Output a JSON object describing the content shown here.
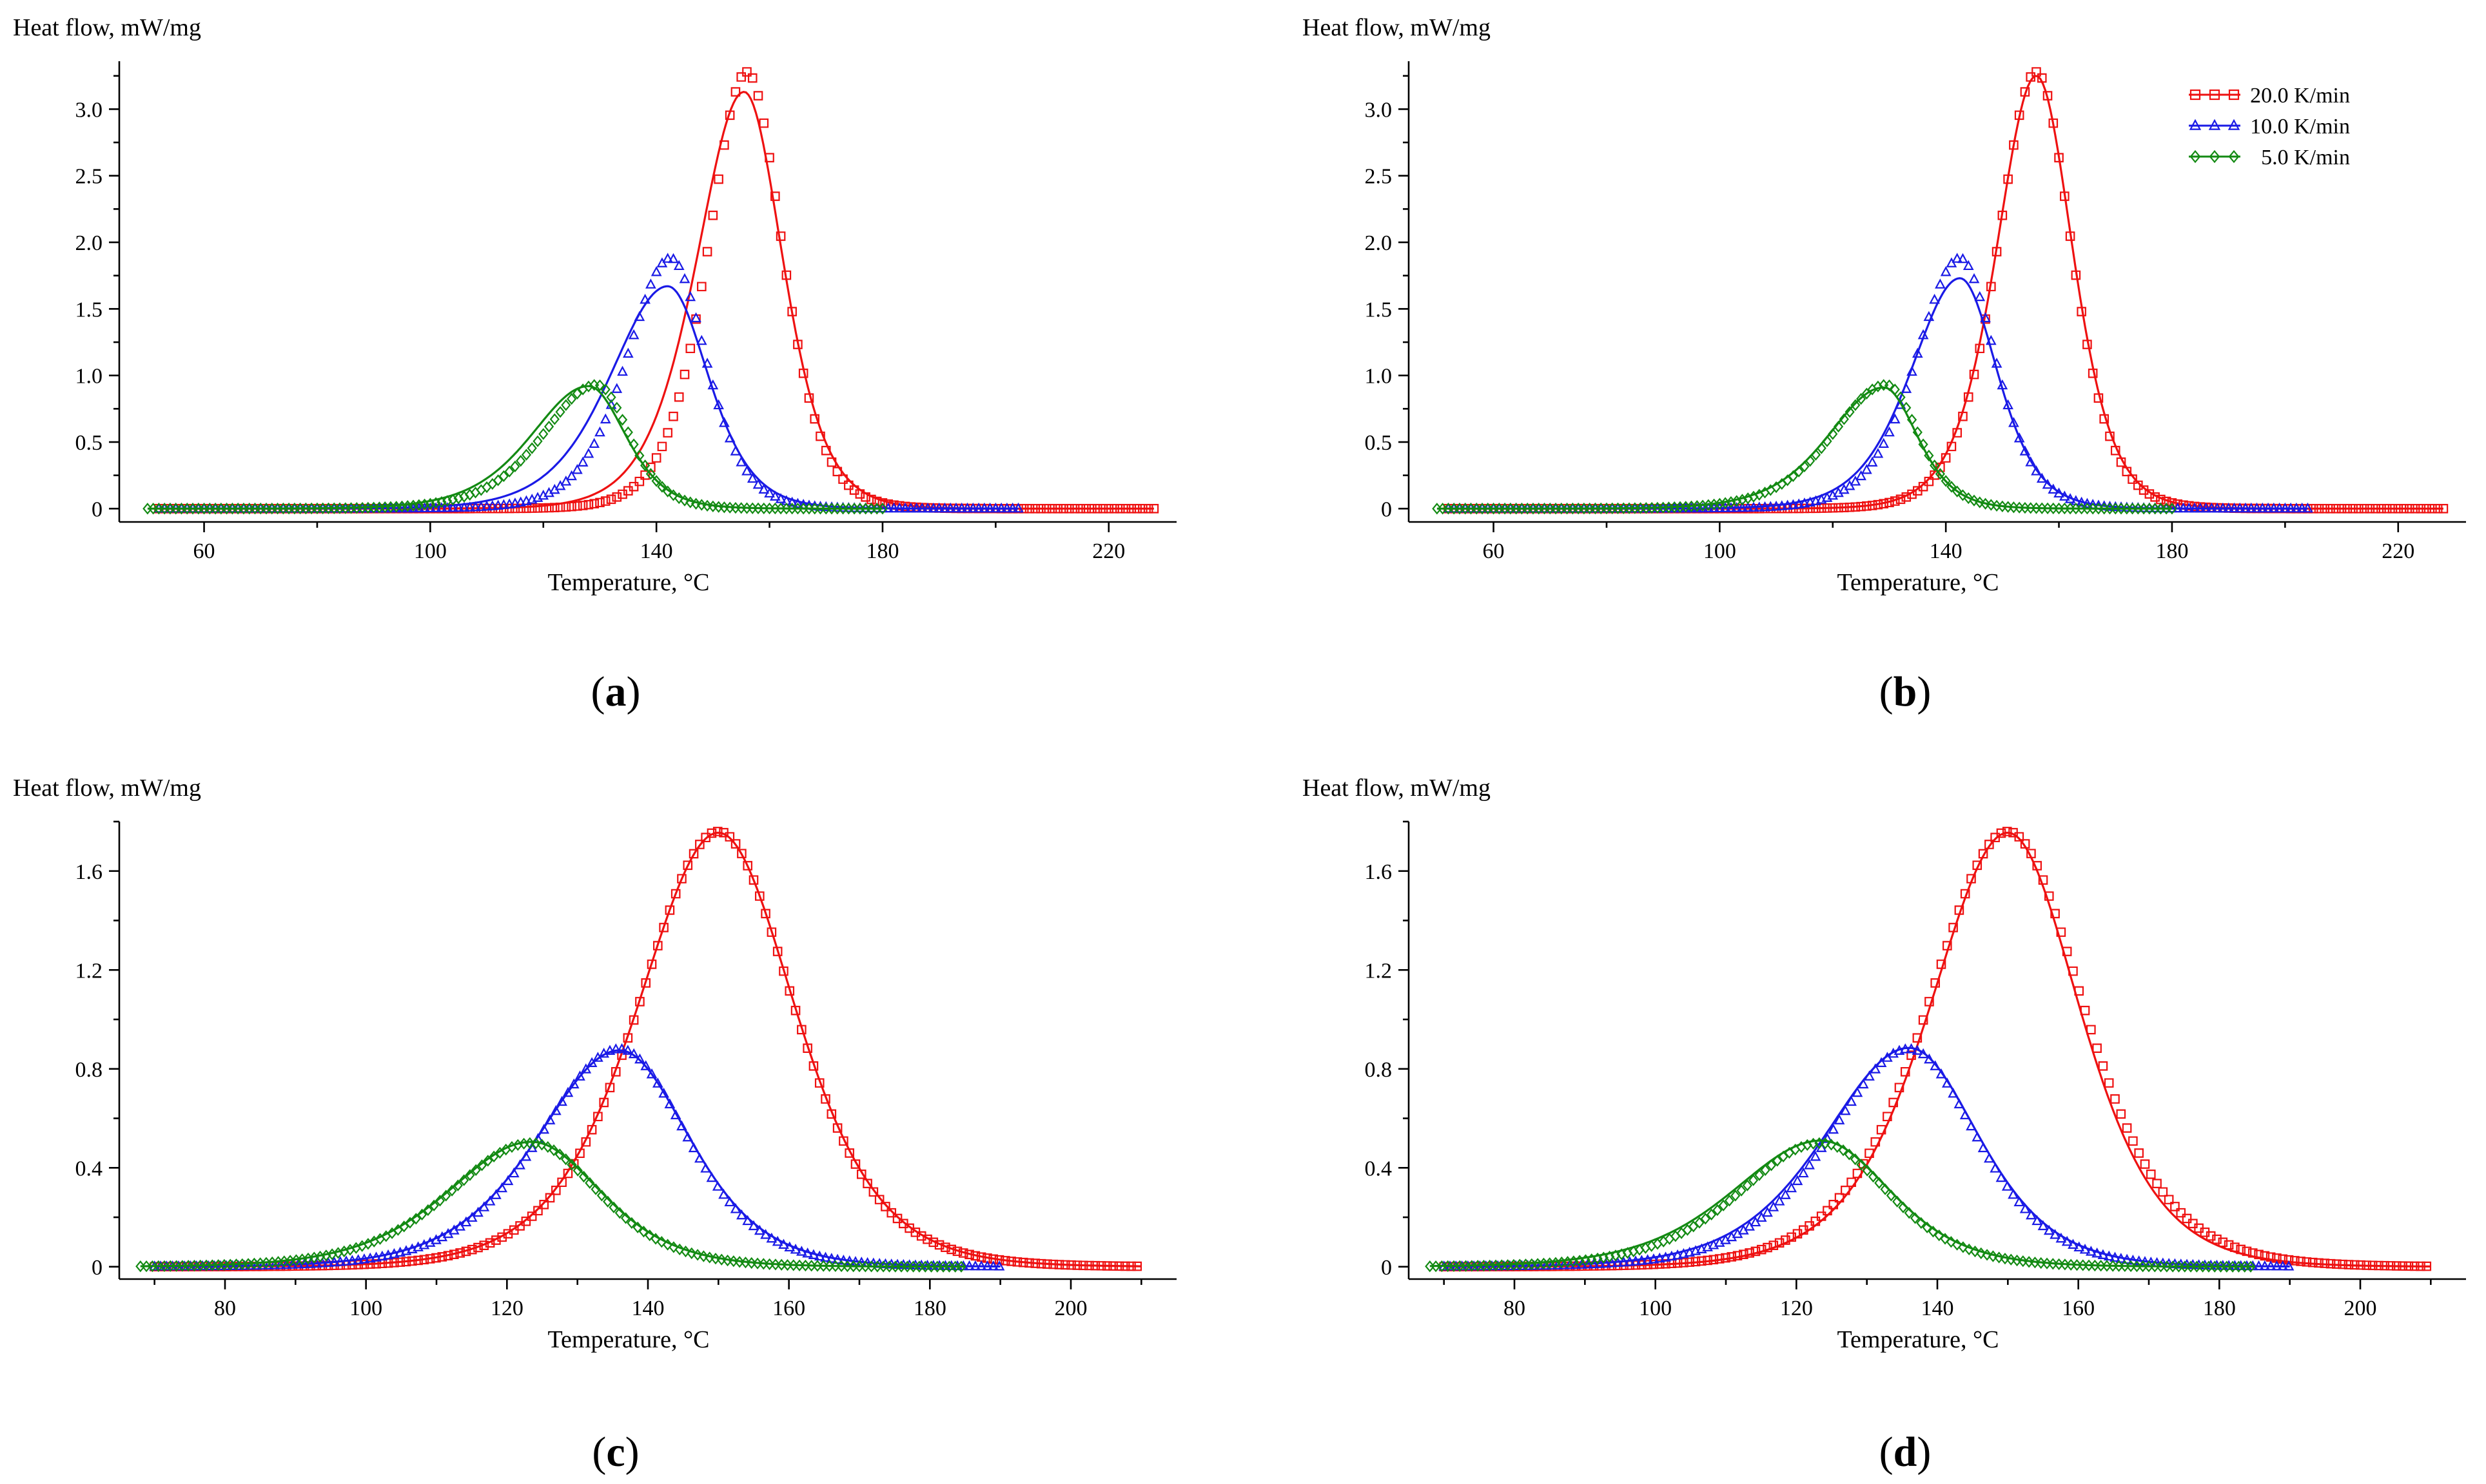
{
  "series_styles": [
    {
      "name": "20.0 K/min",
      "color": "#ee1111",
      "marker": "square"
    },
    {
      "name": "10.0 K/min",
      "color": "#1a1ae6",
      "marker": "triangle"
    },
    {
      "name": "5.0 K/min",
      "color": "#138a13",
      "marker": "diamond"
    }
  ],
  "chart_data": [
    {
      "panel": "a",
      "type": "line",
      "ylabel": "Heat flow, mW/mg",
      "xlabel": "Temperature, °C",
      "xlim": [
        45,
        232
      ],
      "ylim": [
        -0.1,
        3.36
      ],
      "xticks": [
        60,
        100,
        140,
        180,
        220
      ],
      "xtick_labels": [
        "60",
        "100",
        "140",
        "180",
        "220"
      ],
      "yticks": [
        0,
        0.5,
        1,
        1.5,
        2,
        2.5,
        3
      ],
      "ytick_labels": [
        "0",
        "0.5",
        "1.0",
        "1.5",
        "2.0",
        "2.5",
        "3.0"
      ],
      "legend": false,
      "series": [
        {
          "name": "20.0 K/min",
          "x_range": [
            52,
            228
          ],
          "exp_peak": {
            "x": 156,
            "y": 3.28,
            "left_width": 11.5,
            "right_width": 10.5
          },
          "fit_peak": {
            "x": 155.5,
            "y": 3.13,
            "left_width": 14,
            "right_width": 11.5
          }
        },
        {
          "name": "10.0 K/min",
          "x_range": [
            52,
            204
          ],
          "exp_peak": {
            "x": 142.5,
            "y": 1.88,
            "left_width": 13,
            "right_width": 10.5
          },
          "fit_peak": {
            "x": 142,
            "y": 1.67,
            "left_width": 17,
            "right_width": 12
          }
        },
        {
          "name": "5.0 K/min",
          "x_range": [
            50,
            180
          ],
          "exp_peak": {
            "x": 129.5,
            "y": 0.93,
            "left_width": 16,
            "right_width": 9.5
          },
          "fit_peak": {
            "x": 128,
            "y": 0.92,
            "left_width": 17,
            "right_width": 11
          }
        }
      ]
    },
    {
      "panel": "b",
      "type": "line",
      "ylabel": "Heat flow, mW/mg",
      "xlabel": "Temperature, °C",
      "xlim": [
        45,
        232
      ],
      "ylim": [
        -0.1,
        3.36
      ],
      "xticks": [
        60,
        100,
        140,
        180,
        220
      ],
      "xtick_labels": [
        "60",
        "100",
        "140",
        "180",
        "220"
      ],
      "yticks": [
        0,
        0.5,
        1,
        1.5,
        2,
        2.5,
        3
      ],
      "ytick_labels": [
        "0",
        "0.5",
        "1.0",
        "1.5",
        "2.0",
        "2.5",
        "3.0"
      ],
      "legend": true,
      "legend_position": "top-right",
      "series": [
        {
          "name": "20.0 K/min",
          "x_range": [
            52,
            228
          ],
          "exp_peak": {
            "x": 156,
            "y": 3.28,
            "left_width": 11.5,
            "right_width": 10.5
          },
          "fit_peak": {
            "x": 156,
            "y": 3.25,
            "left_width": 11.8,
            "right_width": 10.8
          }
        },
        {
          "name": "10.0 K/min",
          "x_range": [
            52,
            204
          ],
          "exp_peak": {
            "x": 142.5,
            "y": 1.88,
            "left_width": 13,
            "right_width": 10.5
          },
          "fit_peak": {
            "x": 142.5,
            "y": 1.73,
            "left_width": 14.5,
            "right_width": 11
          }
        },
        {
          "name": "5.0 K/min",
          "x_range": [
            50,
            180
          ],
          "exp_peak": {
            "x": 129.5,
            "y": 0.93,
            "left_width": 16,
            "right_width": 9.5
          },
          "fit_peak": {
            "x": 129,
            "y": 0.91,
            "left_width": 16.5,
            "right_width": 10
          }
        }
      ]
    },
    {
      "panel": "c",
      "type": "line",
      "ylabel": "Heat flow, mW/mg",
      "xlabel": "Temperature, °C",
      "xlim": [
        65,
        215
      ],
      "ylim": [
        -0.05,
        1.8
      ],
      "xticks": [
        80,
        100,
        120,
        140,
        160,
        180,
        200
      ],
      "xtick_labels": [
        "80",
        "100",
        "120",
        "140",
        "160",
        "180",
        "200"
      ],
      "yticks": [
        0,
        0.4,
        0.8,
        1.2,
        1.6
      ],
      "ytick_labels": [
        "0",
        "0.4",
        "0.8",
        "1.2",
        "1.6"
      ],
      "legend": false,
      "series": [
        {
          "name": "20.0 K/min",
          "x_range": [
            70,
            210
          ],
          "exp_peak": {
            "x": 150,
            "y": 1.76,
            "left_width": 19,
            "right_width": 18
          },
          "fit_peak": {
            "x": 150,
            "y": 1.755,
            "left_width": 19.2,
            "right_width": 18.2
          }
        },
        {
          "name": "10.0 K/min",
          "x_range": [
            70,
            190
          ],
          "exp_peak": {
            "x": 136,
            "y": 0.88,
            "left_width": 19,
            "right_width": 16
          },
          "fit_peak": {
            "x": 136,
            "y": 0.875,
            "left_width": 19.5,
            "right_width": 16.5
          }
        },
        {
          "name": "5.0 K/min",
          "x_range": [
            68,
            185
          ],
          "exp_peak": {
            "x": 123.5,
            "y": 0.5,
            "left_width": 19.5,
            "right_width": 16
          },
          "fit_peak": {
            "x": 123.5,
            "y": 0.505,
            "left_width": 20,
            "right_width": 16.5
          }
        }
      ]
    },
    {
      "panel": "d",
      "type": "line",
      "ylabel": "Heat flow, mW/mg",
      "xlabel": "Temperature, °C",
      "xlim": [
        65,
        215
      ],
      "ylim": [
        -0.05,
        1.8
      ],
      "xticks": [
        80,
        100,
        120,
        140,
        160,
        180,
        200
      ],
      "xtick_labels": [
        "80",
        "100",
        "120",
        "140",
        "160",
        "180",
        "200"
      ],
      "yticks": [
        0,
        0.4,
        0.8,
        1.2,
        1.6
      ],
      "ytick_labels": [
        "0",
        "0.4",
        "0.8",
        "1.2",
        "1.6"
      ],
      "legend": false,
      "series": [
        {
          "name": "20.0 K/min",
          "x_range": [
            70,
            210
          ],
          "exp_peak": {
            "x": 150,
            "y": 1.76,
            "left_width": 19,
            "right_width": 18
          },
          "fit_peak": {
            "x": 150,
            "y": 1.755,
            "left_width": 18.5,
            "right_width": 17
          }
        },
        {
          "name": "10.0 K/min",
          "x_range": [
            70,
            190
          ],
          "exp_peak": {
            "x": 136,
            "y": 0.88,
            "left_width": 19,
            "right_width": 16
          },
          "fit_peak": {
            "x": 136,
            "y": 0.885,
            "left_width": 20,
            "right_width": 16.5
          }
        },
        {
          "name": "5.0 K/min",
          "x_range": [
            68,
            185
          ],
          "exp_peak": {
            "x": 123.5,
            "y": 0.5,
            "left_width": 19.5,
            "right_width": 16
          },
          "fit_peak": {
            "x": 123.5,
            "y": 0.51,
            "left_width": 21,
            "right_width": 16.5
          }
        }
      ]
    }
  ]
}
